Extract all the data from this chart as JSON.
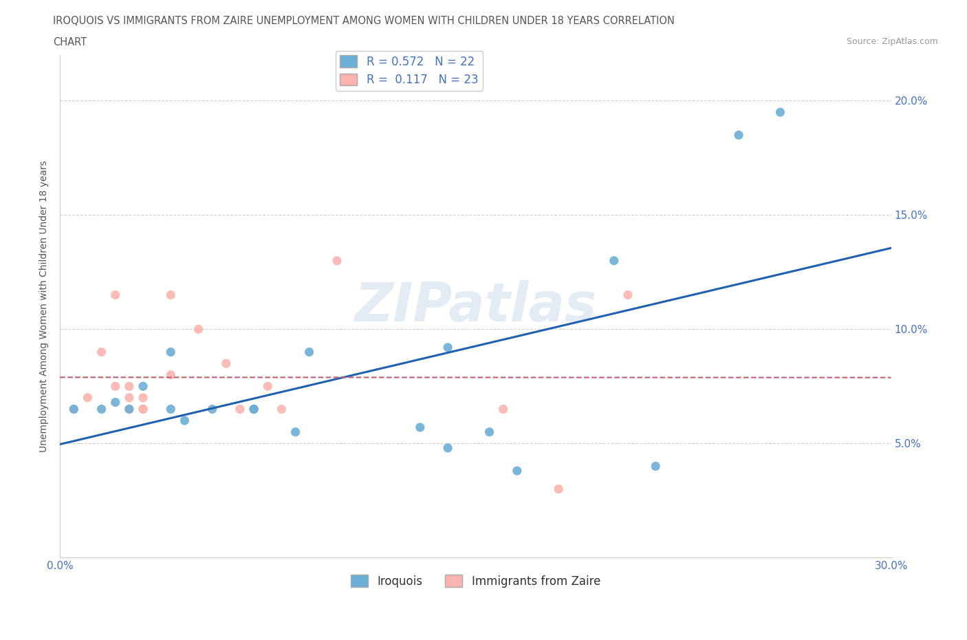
{
  "title_line1": "IROQUOIS VS IMMIGRANTS FROM ZAIRE UNEMPLOYMENT AMONG WOMEN WITH CHILDREN UNDER 18 YEARS CORRELATION",
  "title_line2": "CHART",
  "source": "Source: ZipAtlas.com",
  "ylabel": "Unemployment Among Women with Children Under 18 years",
  "xlim": [
    0.0,
    0.3
  ],
  "ylim": [
    0.0,
    0.22
  ],
  "xticks": [
    0.0,
    0.05,
    0.1,
    0.15,
    0.2,
    0.25,
    0.3
  ],
  "yticks": [
    0.05,
    0.1,
    0.15,
    0.2
  ],
  "iroquois_color": "#6baed6",
  "zaire_color": "#fbb4ae",
  "iroquois_R": 0.572,
  "iroquois_N": 22,
  "zaire_R": 0.117,
  "zaire_N": 23,
  "legend_label_iroquois": "Iroquois",
  "legend_label_zaire": "Immigrants from Zaire",
  "watermark": "ZIPatlas",
  "background_color": "#ffffff",
  "grid_color": "#d0d0d0",
  "title_color": "#555555",
  "source_color": "#999999",
  "axis_label_color": "#555555",
  "tick_color": "#4472c4",
  "legend_text_color": "#4472c4",
  "iroquois_trend_color": "#2060b0",
  "zaire_trend_color": "#c06070",
  "iroquois_x": [
    0.005,
    0.015,
    0.02,
    0.025,
    0.03,
    0.04,
    0.04,
    0.045,
    0.055,
    0.07,
    0.07,
    0.085,
    0.09,
    0.13,
    0.14,
    0.14,
    0.155,
    0.165,
    0.2,
    0.215,
    0.245,
    0.26
  ],
  "iroquois_y": [
    0.065,
    0.065,
    0.068,
    0.065,
    0.075,
    0.065,
    0.09,
    0.06,
    0.065,
    0.065,
    0.065,
    0.055,
    0.09,
    0.057,
    0.048,
    0.092,
    0.055,
    0.038,
    0.13,
    0.04,
    0.185,
    0.195
  ],
  "zaire_x": [
    0.005,
    0.01,
    0.015,
    0.02,
    0.02,
    0.025,
    0.025,
    0.025,
    0.03,
    0.03,
    0.03,
    0.04,
    0.04,
    0.05,
    0.06,
    0.065,
    0.07,
    0.075,
    0.08,
    0.1,
    0.16,
    0.18,
    0.205
  ],
  "zaire_y": [
    0.065,
    0.07,
    0.09,
    0.075,
    0.115,
    0.065,
    0.07,
    0.075,
    0.065,
    0.07,
    0.065,
    0.08,
    0.115,
    0.1,
    0.085,
    0.065,
    0.065,
    0.075,
    0.065,
    0.13,
    0.065,
    0.03,
    0.115
  ]
}
